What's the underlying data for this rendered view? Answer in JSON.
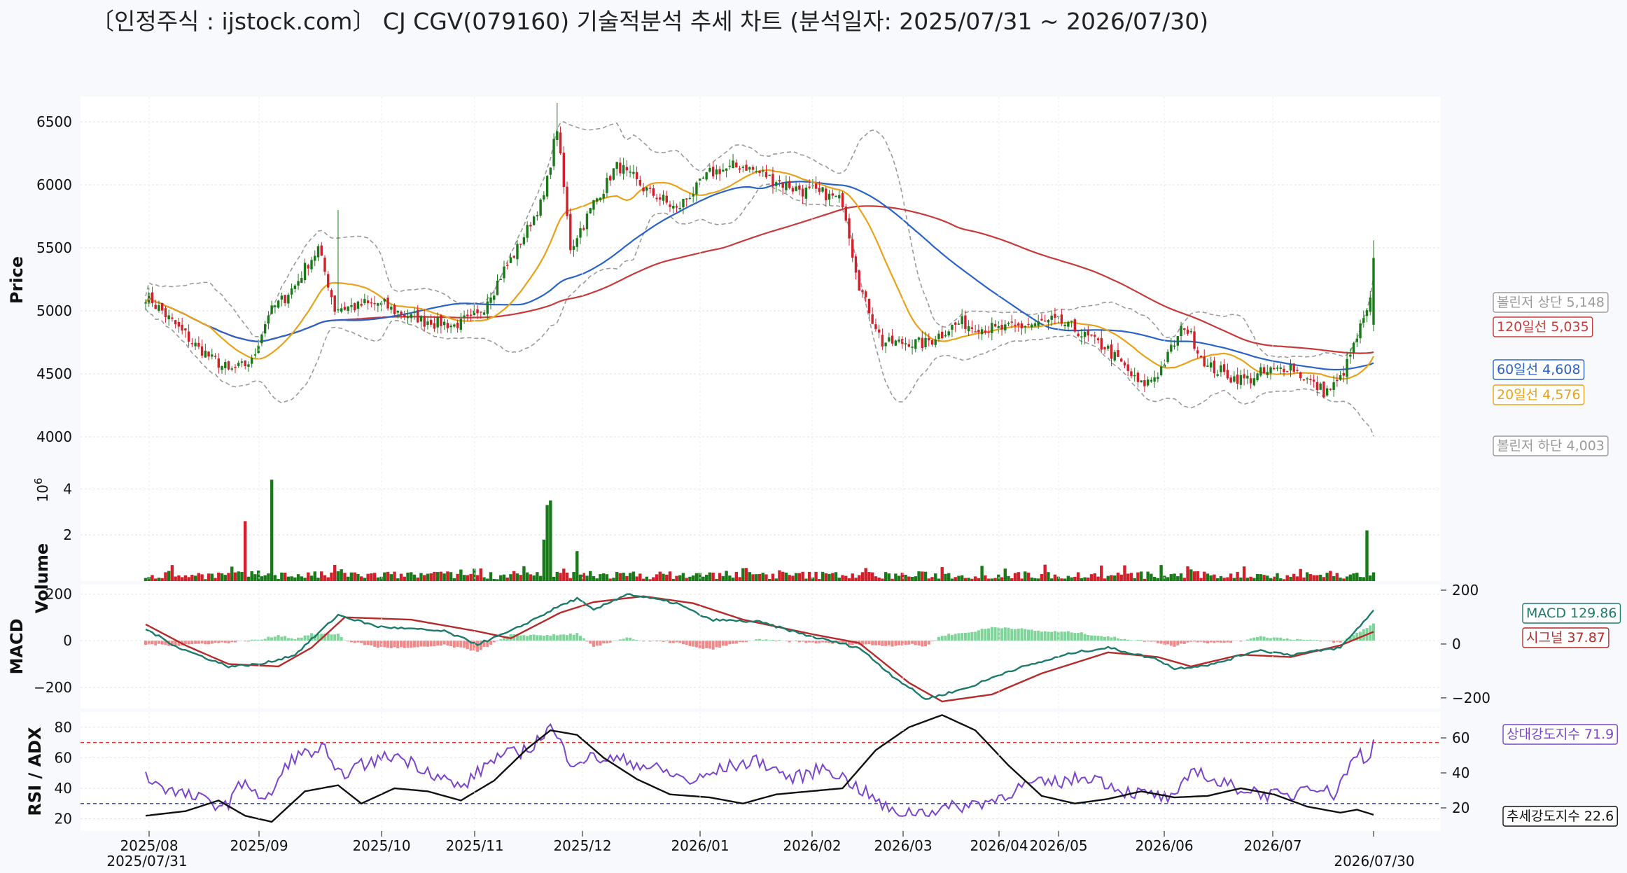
{
  "title": "〔인정주식 : ijstock.com〕 CJ CGV(079160) 기술적분석 추세 차트 (분석일자: 2025/07/31 ~ 2026/07/30)",
  "colors": {
    "up": "#1a7a1a",
    "down": "#d0202a",
    "ma20": "#e8a21a",
    "ma60": "#2a63c8",
    "ma120": "#c83a3a",
    "bb": "#9a9a9a",
    "macd": "#1b7a6a",
    "signal": "#b52a2a",
    "rsi": "#7a44cc",
    "adx": "#111111"
  },
  "chart_data": [
    {
      "type": "candlestick",
      "ylabel": "Price",
      "ylim": [
        3900,
        6700
      ],
      "yticks": [
        "4000",
        "4500",
        "5000",
        "5500",
        "6000",
        "6500"
      ],
      "xticks": [
        "2025/08",
        "2025/09",
        "2025/10",
        "2025/11",
        "2025/12",
        "2026/01",
        "2026/02",
        "2026/03",
        "2026/04",
        "2026/05",
        "2026/06",
        "2026/07"
      ],
      "start_label": "2025/07/31",
      "end_label": "2026/07/30",
      "anchors": [
        [
          0,
          5130
        ],
        [
          5,
          5000
        ],
        [
          15,
          4720
        ],
        [
          25,
          4520
        ],
        [
          32,
          4600
        ],
        [
          37,
          4980
        ],
        [
          45,
          5200
        ],
        [
          52,
          5500
        ],
        [
          57,
          5020
        ],
        [
          70,
          5060
        ],
        [
          80,
          4950
        ],
        [
          93,
          4880
        ],
        [
          100,
          4960
        ],
        [
          112,
          5500
        ],
        [
          120,
          5900
        ],
        [
          124,
          6450
        ],
        [
          128,
          5500
        ],
        [
          135,
          5850
        ],
        [
          142,
          6150
        ],
        [
          150,
          5980
        ],
        [
          160,
          5800
        ],
        [
          170,
          6100
        ],
        [
          180,
          6150
        ],
        [
          195,
          5980
        ],
        [
          200,
          5950
        ],
        [
          210,
          5880
        ],
        [
          215,
          5200
        ],
        [
          222,
          4750
        ],
        [
          235,
          4750
        ],
        [
          245,
          4900
        ],
        [
          255,
          4850
        ],
        [
          275,
          4920
        ],
        [
          290,
          4700
        ],
        [
          300,
          4400
        ],
        [
          305,
          4500
        ],
        [
          313,
          4880
        ],
        [
          320,
          4550
        ],
        [
          330,
          4450
        ],
        [
          345,
          4560
        ],
        [
          355,
          4350
        ],
        [
          360,
          4450
        ],
        [
          367,
          4920
        ],
        [
          370,
          5120
        ]
      ],
      "volume": {
        "ylabel": "Volume",
        "exponent": "10",
        "exponent_power": "6",
        "yticks": [
          "2",
          "4"
        ],
        "ylim": [
          0,
          4.8
        ],
        "spikes": [
          [
            30,
            2.6
          ],
          [
            38,
            4.4
          ],
          [
            57,
            0.7
          ],
          [
            121,
            3.3
          ],
          [
            122,
            3.5
          ],
          [
            120,
            1.8
          ],
          [
            130,
            1.3
          ],
          [
            368,
            2.2
          ]
        ]
      },
      "last": {
        "bb_upper": "볼린저 상단 5,148",
        "ma120": "120일선 5,035",
        "ma60": "60일선 4,608",
        "ma20": "20일선 4,576",
        "bb_lower": "볼린저 하단 4,003"
      }
    },
    {
      "type": "line",
      "ylabel": "MACD",
      "ylim": [
        -290,
        240
      ],
      "yticks": [
        "200",
        "0",
        "−200"
      ],
      "ytick_values": [
        200,
        0,
        -200
      ],
      "macd_anchors": [
        [
          0,
          50
        ],
        [
          10,
          -30
        ],
        [
          25,
          -110
        ],
        [
          35,
          -100
        ],
        [
          45,
          -60
        ],
        [
          58,
          110
        ],
        [
          70,
          60
        ],
        [
          90,
          40
        ],
        [
          100,
          -15
        ],
        [
          110,
          40
        ],
        [
          125,
          150
        ],
        [
          130,
          180
        ],
        [
          135,
          130
        ],
        [
          145,
          200
        ],
        [
          160,
          160
        ],
        [
          170,
          90
        ],
        [
          185,
          80
        ],
        [
          200,
          20
        ],
        [
          215,
          -30
        ],
        [
          225,
          -150
        ],
        [
          235,
          -250
        ],
        [
          248,
          -200
        ],
        [
          260,
          -130
        ],
        [
          280,
          -50
        ],
        [
          290,
          -30
        ],
        [
          305,
          -80
        ],
        [
          310,
          -120
        ],
        [
          322,
          -100
        ],
        [
          335,
          -40
        ],
        [
          345,
          -60
        ],
        [
          360,
          -30
        ],
        [
          370,
          129
        ]
      ],
      "signal_anchors": [
        [
          0,
          70
        ],
        [
          12,
          -20
        ],
        [
          25,
          -100
        ],
        [
          40,
          -110
        ],
        [
          50,
          -30
        ],
        [
          60,
          100
        ],
        [
          80,
          90
        ],
        [
          100,
          40
        ],
        [
          110,
          10
        ],
        [
          125,
          120
        ],
        [
          135,
          165
        ],
        [
          150,
          190
        ],
        [
          165,
          160
        ],
        [
          180,
          90
        ],
        [
          200,
          30
        ],
        [
          215,
          -10
        ],
        [
          230,
          -180
        ],
        [
          240,
          -260
        ],
        [
          255,
          -230
        ],
        [
          270,
          -140
        ],
        [
          290,
          -50
        ],
        [
          305,
          -70
        ],
        [
          315,
          -110
        ],
        [
          330,
          -60
        ],
        [
          345,
          -70
        ],
        [
          360,
          -20
        ],
        [
          370,
          38
        ]
      ],
      "labels": {
        "macd": "MACD 129.86",
        "signal": "시그널 37.87"
      }
    },
    {
      "type": "line",
      "ylabel": "RSI / ADX",
      "ylim": [
        12,
        90
      ],
      "yticks": [
        "20",
        "40",
        "60",
        "80"
      ],
      "right_ticks": [
        "20",
        "40",
        "60"
      ],
      "hlines": [
        70,
        30
      ],
      "rsi_anchors": [
        [
          0,
          48
        ],
        [
          8,
          38
        ],
        [
          18,
          32
        ],
        [
          24,
          28
        ],
        [
          30,
          46
        ],
        [
          36,
          30
        ],
        [
          44,
          60
        ],
        [
          54,
          66
        ],
        [
          57,
          48
        ],
        [
          65,
          55
        ],
        [
          75,
          62
        ],
        [
          85,
          52
        ],
        [
          95,
          40
        ],
        [
          105,
          60
        ],
        [
          115,
          65
        ],
        [
          122,
          80
        ],
        [
          128,
          58
        ],
        [
          135,
          60
        ],
        [
          145,
          58
        ],
        [
          155,
          52
        ],
        [
          165,
          44
        ],
        [
          175,
          54
        ],
        [
          185,
          58
        ],
        [
          195,
          46
        ],
        [
          205,
          54
        ],
        [
          215,
          40
        ],
        [
          225,
          24
        ],
        [
          235,
          25
        ],
        [
          245,
          28
        ],
        [
          255,
          32
        ],
        [
          265,
          42
        ],
        [
          275,
          44
        ],
        [
          285,
          48
        ],
        [
          295,
          38
        ],
        [
          305,
          35
        ],
        [
          310,
          32
        ],
        [
          316,
          54
        ],
        [
          322,
          44
        ],
        [
          330,
          40
        ],
        [
          338,
          36
        ],
        [
          345,
          34
        ],
        [
          350,
          44
        ],
        [
          358,
          36
        ],
        [
          362,
          52
        ],
        [
          366,
          64
        ],
        [
          368,
          56
        ],
        [
          370,
          71.9
        ]
      ],
      "adx_anchors": [
        [
          0,
          22
        ],
        [
          12,
          25
        ],
        [
          22,
          32
        ],
        [
          30,
          22
        ],
        [
          38,
          18
        ],
        [
          48,
          38
        ],
        [
          58,
          42
        ],
        [
          65,
          30
        ],
        [
          75,
          40
        ],
        [
          85,
          38
        ],
        [
          95,
          32
        ],
        [
          105,
          45
        ],
        [
          115,
          66
        ],
        [
          122,
          78
        ],
        [
          130,
          75
        ],
        [
          138,
          60
        ],
        [
          148,
          46
        ],
        [
          158,
          36
        ],
        [
          170,
          34
        ],
        [
          180,
          30
        ],
        [
          190,
          36
        ],
        [
          200,
          38
        ],
        [
          210,
          40
        ],
        [
          220,
          65
        ],
        [
          230,
          80
        ],
        [
          240,
          88
        ],
        [
          250,
          78
        ],
        [
          260,
          55
        ],
        [
          270,
          35
        ],
        [
          280,
          30
        ],
        [
          290,
          33
        ],
        [
          300,
          38
        ],
        [
          310,
          34
        ],
        [
          320,
          35
        ],
        [
          330,
          40
        ],
        [
          340,
          36
        ],
        [
          350,
          28
        ],
        [
          360,
          24
        ],
        [
          365,
          26
        ],
        [
          370,
          22.6
        ]
      ],
      "labels": {
        "rsi": "상대강도지수 71.9",
        "adx": "추세강도지수 22.6"
      }
    }
  ]
}
